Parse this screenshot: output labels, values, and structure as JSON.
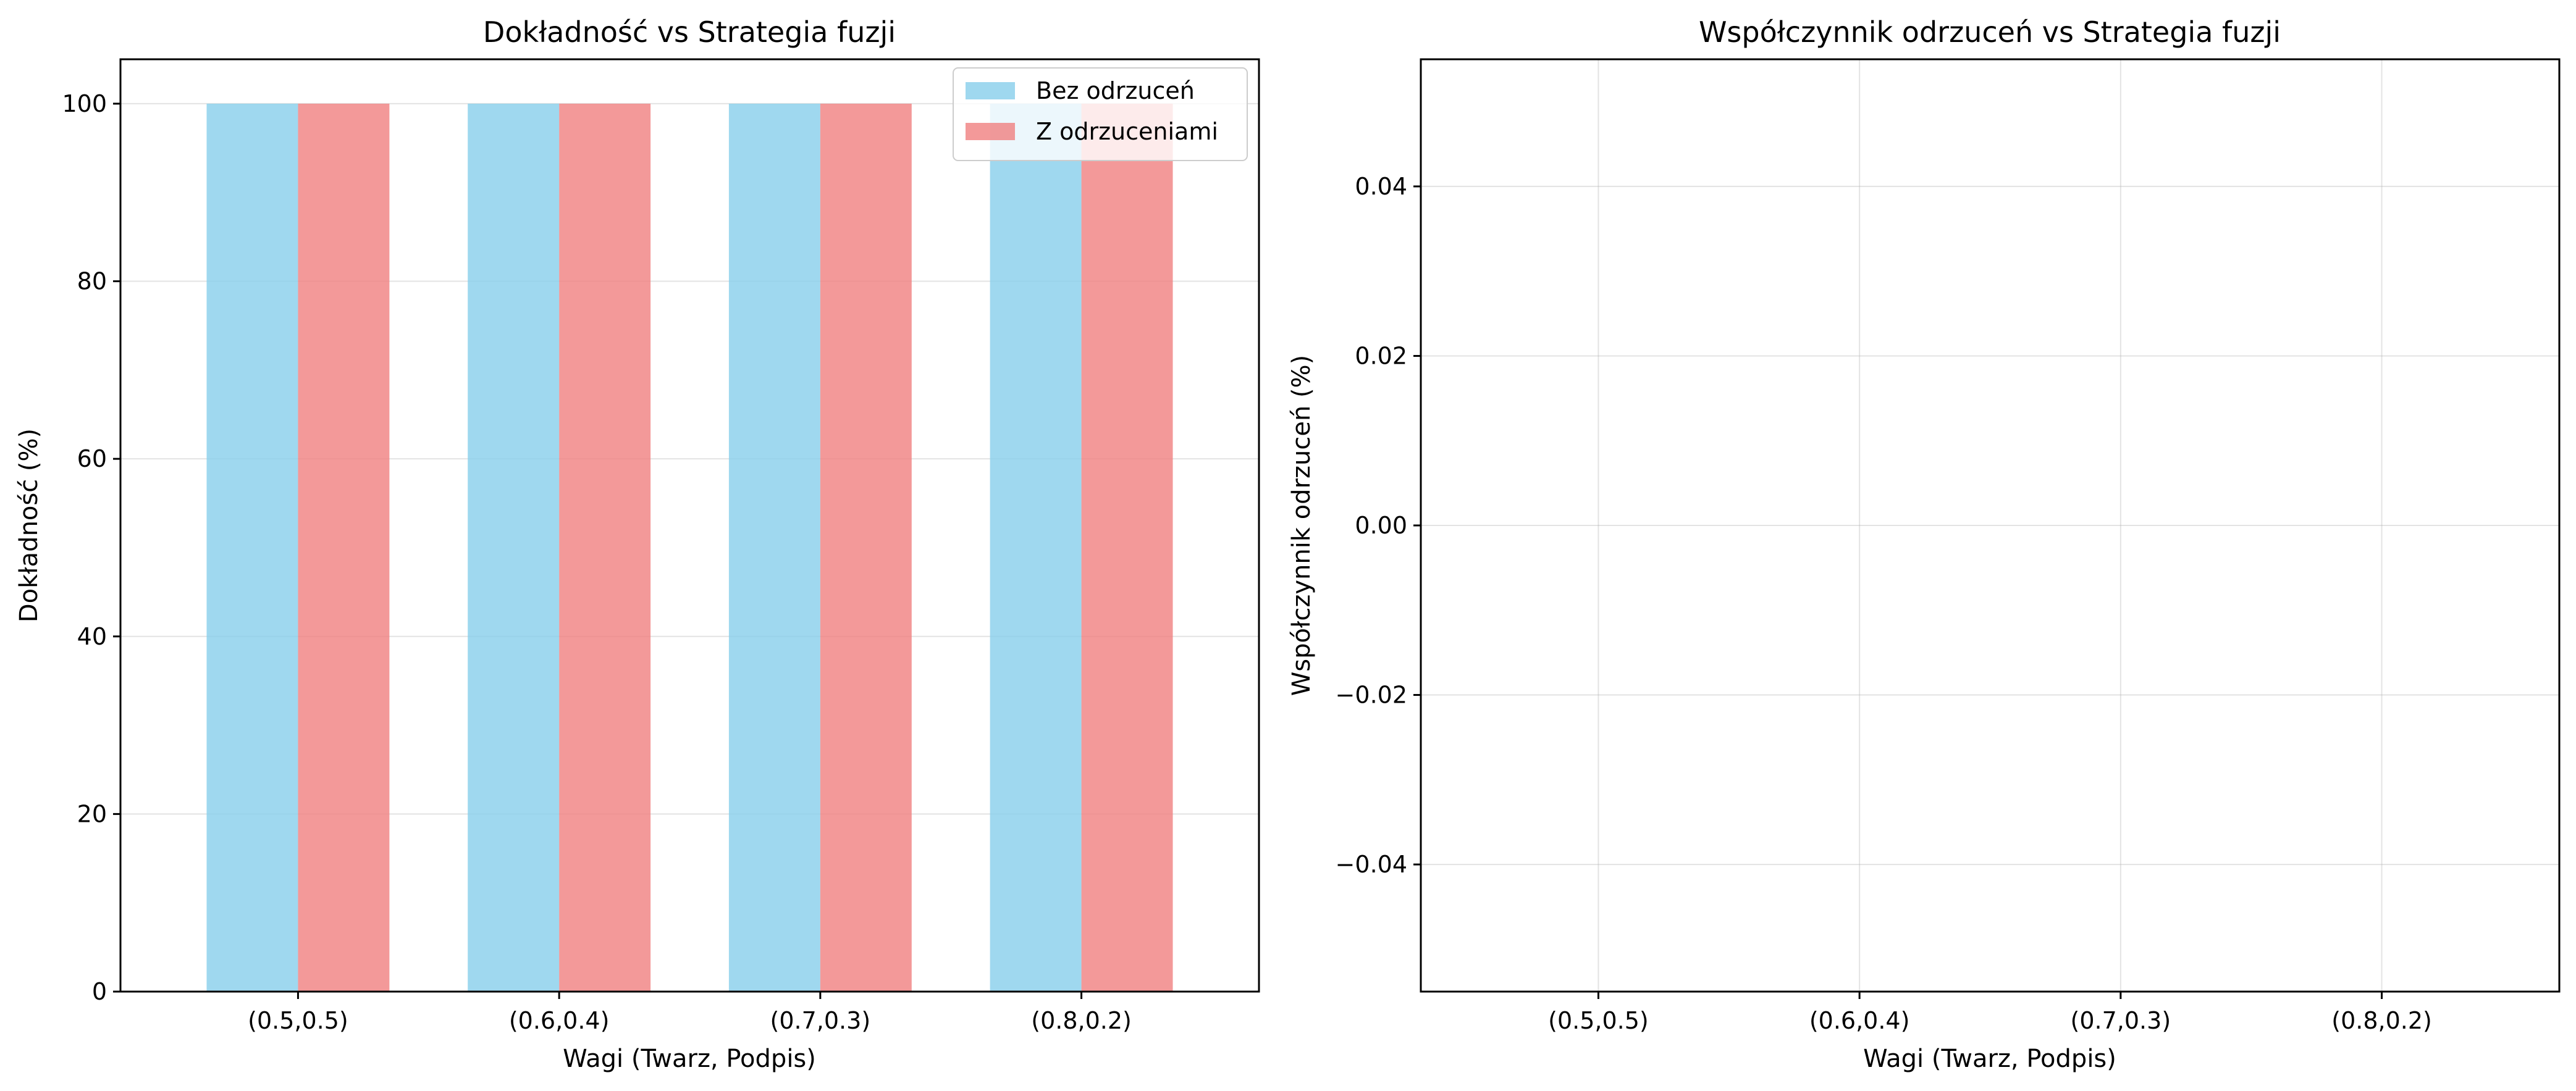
{
  "chart_data": [
    {
      "type": "bar",
      "title": "Dokładność vs Strategia fuzji",
      "xlabel": "Wagi (Twarz, Podpis)",
      "ylabel": "Dokładność (%)",
      "categories": [
        "(0.5,0.5)",
        "(0.6,0.4)",
        "(0.7,0.3)",
        "(0.8,0.2)"
      ],
      "ylim": [
        0,
        105
      ],
      "yticks": [
        0,
        20,
        40,
        60,
        80,
        100
      ],
      "grid": true,
      "legend_position": "top-right",
      "series": [
        {
          "name": "Bez odrzuceń",
          "values": [
            100,
            100,
            100,
            100
          ],
          "color": "#87ceeb"
        },
        {
          "name": "Z odrzuceniami",
          "values": [
            100,
            100,
            100,
            100
          ],
          "color": "#f08080"
        }
      ]
    },
    {
      "type": "bar",
      "title": "Współczynnik odrzuceń vs Strategia fuzji",
      "xlabel": "Wagi (Twarz, Podpis)",
      "ylabel": "Współczynnik odrzuceń (%)",
      "categories": [
        "(0.5,0.5)",
        "(0.6,0.4)",
        "(0.7,0.3)",
        "(0.8,0.2)"
      ],
      "ylim": [
        -0.055,
        0.055
      ],
      "yticks": [
        -0.04,
        -0.02,
        0.0,
        0.02,
        0.04
      ],
      "ytick_labels": [
        "−0.04",
        "−0.02",
        "0.00",
        "0.02",
        "0.04"
      ],
      "grid": true,
      "series": [
        {
          "values": [
            0,
            0,
            0,
            0
          ],
          "color": "#87ceeb"
        }
      ]
    }
  ]
}
